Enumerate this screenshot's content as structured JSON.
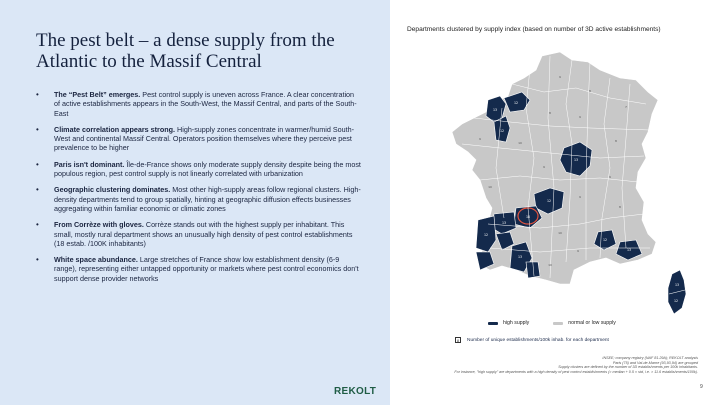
{
  "slide": {
    "title": "The pest belt – a dense supply from the Atlantic to the Massif Central",
    "bullets": [
      {
        "bold": "The “Pest Belt” emerges.",
        "text": " Pest control supply is uneven across France. A clear concentration of active establishments appears in the South-West, the Massif Central, and parts of the South-East"
      },
      {
        "bold": "Climate correlation appears strong.",
        "text": " High-supply zones concentrate in warmer/humid South-West and continental Massif Central. Operators position themselves where they perceive pest prevalence to be higher"
      },
      {
        "bold": "Paris isn't dominant.",
        "text": " Île-de-France shows only moderate supply density despite being the most populous region, pest control supply is not linearly correlated with urbanization"
      },
      {
        "bold": "Geographic clustering dominates.",
        "text": " Most other high-supply areas follow regional clusters. High-density departments tend to group spatially, hinting at geographic diffusion effects businesses aggregating within familiar economic or climatic zones"
      },
      {
        "bold": "From Corrèze with gloves.",
        "text": " Corrèze stands out with the highest supply per inhabitant. This small, mostly rural department shows an unusually high density of pest control establishments (18 estab. /100K inhabitants)"
      },
      {
        "bold": "White space abundance.",
        "text": " Large stretches of France show low establishment density (6-9 range), representing either untapped opportunity or markets where pest control economics don't support dense provider networks"
      }
    ],
    "map": {
      "title": "Departments clustered by supply index (based on number of 3D active establishments)",
      "colors": {
        "high": "#142a4c",
        "normal": "#c8c8c8",
        "border": "#ffffff",
        "highlight": "#e0533f"
      },
      "legend": {
        "high": "high supply",
        "normal": "normal or low supply"
      },
      "footnote_box": "8",
      "footnote": "Number of unique establishments/100k inhab. for each department"
    },
    "sources": [
      "INSEE; company registry (NAF 81.29A); REKOLT analysis",
      "Paris (75) and Val-de-Marne (93,93,94) are grouped",
      "Supply clusters are defined by the number of 3D establishments per 100k inhabitants.",
      "For instance, \"high supply\" are departments with a high density of pest control establishments (> median + 0.5 × std, i.e. > 11.6 establishments/100k)."
    ],
    "logo": "REKOLT",
    "page_number": "9"
  }
}
